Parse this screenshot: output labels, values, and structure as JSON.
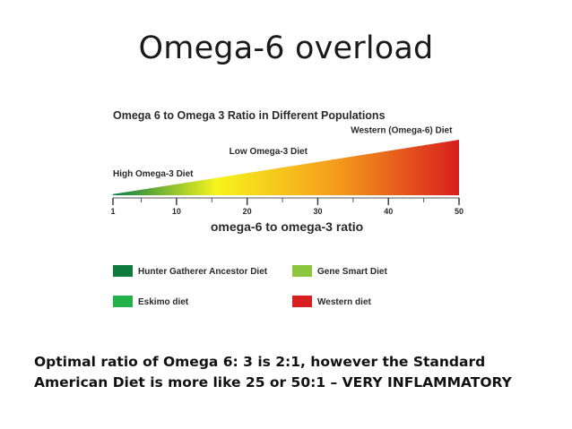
{
  "slide": {
    "title": "Omega-6 overload",
    "caption_line1": "Optimal ratio of Omega 6: 3 is 2:1, however the Standard",
    "caption_line2": "American Diet is more like 25 or 50:1 – VERY INFLAMMATORY"
  },
  "chart_data": {
    "type": "area",
    "title": "Omega 6 to Omega 3 Ratio in Different Populations",
    "xlabel": "omega-6 to omega-3 ratio",
    "ylabel": "",
    "x": [
      1,
      10,
      20,
      30,
      40,
      50
    ],
    "xticks": [
      "1",
      "10",
      "20",
      "30",
      "40",
      "50"
    ],
    "xlim": [
      1,
      50
    ],
    "series": [
      {
        "x": [
          1,
          50
        ],
        "values": [
          1,
          50
        ]
      }
    ],
    "annotations": [
      {
        "text": "High Omega-3 Diet",
        "x": 1
      },
      {
        "text": "Low Omega-3 Diet",
        "x": 20
      },
      {
        "text": "Western (Omega-6) Diet",
        "x": 40
      }
    ],
    "gradient_colors": [
      "#0a7d45",
      "#f7f41c",
      "#f59a1c",
      "#d81e1e"
    ],
    "legend": [
      {
        "label": "Hunter Gatherer Ancestor Diet",
        "color": "#0e7a3c"
      },
      {
        "label": "Gene Smart Diet",
        "color": "#8cc63f"
      },
      {
        "label": "Eskimo diet",
        "color": "#23b24a"
      },
      {
        "label": "Western diet",
        "color": "#d7201f"
      }
    ],
    "grid": false,
    "legend_position": "bottom"
  }
}
